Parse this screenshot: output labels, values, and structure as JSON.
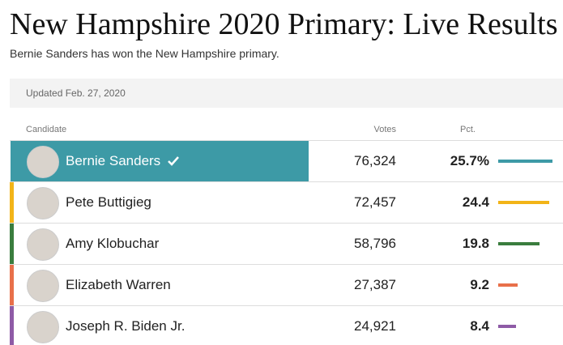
{
  "header": {
    "title": "New Hampshire 2020 Primary: Live Results",
    "subtitle": "Bernie Sanders has won the New Hampshire primary."
  },
  "table": {
    "updated": "Updated Feb. 27, 2020",
    "columns": {
      "candidate": "Candidate",
      "votes": "Votes",
      "pct": "Pct."
    },
    "rows": [
      {
        "candidate": "Bernie Sanders",
        "votes": "76,324",
        "pct": {
          "value": 25.7,
          "label": "25.7%"
        },
        "color": "#3d9aa6",
        "winner": true
      },
      {
        "candidate": "Pete Buttigieg",
        "votes": "72,457",
        "pct": 24.4,
        "color": "#f2b418"
      },
      {
        "candidate": "Amy Klobuchar",
        "votes": "58,796",
        "pct": 19.8,
        "color": "#3a7d3e"
      },
      {
        "candidate": "Elizabeth Warren",
        "votes": "27,387",
        "pct": 9.2,
        "color": "#e8704a"
      },
      {
        "candidate": "Joseph R. Biden Jr.",
        "votes": "24,921",
        "pct": 8.4,
        "color": "#8e5ba6"
      }
    ]
  }
}
